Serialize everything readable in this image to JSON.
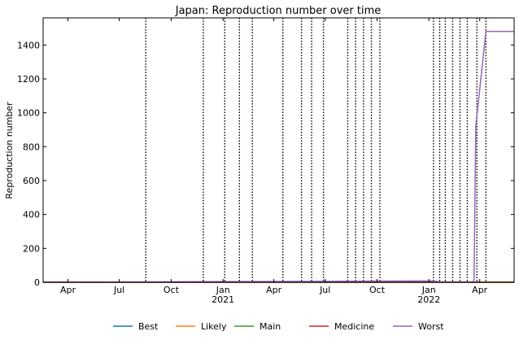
{
  "chart_data": {
    "type": "line",
    "title": "Japan: Reproduction number over time",
    "xlabel": "",
    "ylabel": "Reproduction number",
    "x_range": [
      "2020-02-17",
      "2022-06-01"
    ],
    "ylim": [
      0,
      1560
    ],
    "y_ticks": [
      0,
      200,
      400,
      600,
      800,
      1000,
      1200,
      1400
    ],
    "x_ticks": [
      {
        "date": "2020-04-01",
        "label": "Apr",
        "year": ""
      },
      {
        "date": "2020-07-01",
        "label": "Jul",
        "year": ""
      },
      {
        "date": "2020-10-01",
        "label": "Oct",
        "year": ""
      },
      {
        "date": "2021-01-01",
        "label": "Jan",
        "year": "2021"
      },
      {
        "date": "2021-04-01",
        "label": "Apr",
        "year": ""
      },
      {
        "date": "2021-07-01",
        "label": "Jul",
        "year": ""
      },
      {
        "date": "2021-10-01",
        "label": "Oct",
        "year": ""
      },
      {
        "date": "2022-01-01",
        "label": "Jan",
        "year": "2022"
      },
      {
        "date": "2022-04-01",
        "label": "Apr",
        "year": ""
      }
    ],
    "vlines": [
      "2020-08-17",
      "2020-11-27",
      "2021-01-04",
      "2021-01-30",
      "2021-02-22",
      "2021-04-17",
      "2021-05-20",
      "2021-06-07",
      "2021-06-28",
      "2021-08-10",
      "2021-08-24",
      "2021-09-07",
      "2021-09-21",
      "2021-10-06",
      "2022-01-09",
      "2022-01-20",
      "2022-01-30",
      "2022-02-12",
      "2022-02-25",
      "2022-03-10",
      "2022-03-27",
      "2022-04-12"
    ],
    "legend_position": "bottom",
    "series": [
      {
        "name": "Best",
        "color": "#1f77b4",
        "x": [
          "2020-02-17",
          "2022-06-01"
        ],
        "y": [
          0,
          0
        ]
      },
      {
        "name": "Likely",
        "color": "#ff7f0e",
        "x": [
          "2020-02-17",
          "2022-06-01"
        ],
        "y": [
          0,
          0
        ]
      },
      {
        "name": "Main",
        "color": "#2ca02c",
        "x": [
          "2020-02-17",
          "2022-06-01"
        ],
        "y": [
          0,
          0
        ]
      },
      {
        "name": "Medicine",
        "color": "#d62728",
        "x": [
          "2020-02-17",
          "2022-06-01"
        ],
        "y": [
          0,
          0
        ]
      },
      {
        "name": "Worst",
        "color": "#9467bd",
        "x": [
          "2020-02-17",
          "2022-01-09",
          "2022-01-20",
          "2022-03-20",
          "2022-03-22",
          "2022-03-25",
          "2022-04-12",
          "2022-06-01"
        ],
        "y": [
          0,
          8,
          2,
          2,
          15,
          920,
          1480,
          1480
        ]
      }
    ]
  }
}
